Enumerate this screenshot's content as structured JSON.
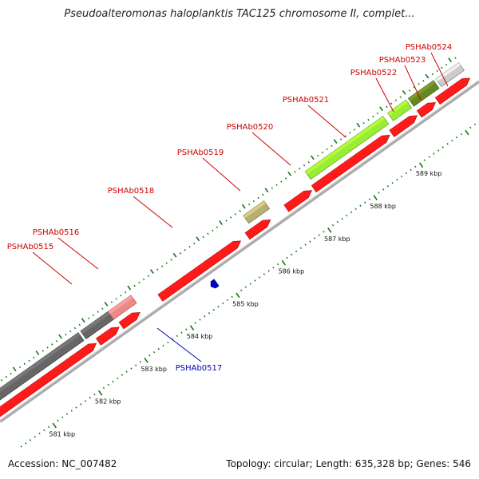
{
  "header": {
    "title": "Pseudoalteromonas haloplanktis TAC125 chromosome II, complet..."
  },
  "footer": {
    "accession": "Accession: NC_007482",
    "summary": "Topology: circular; Length: 635,328 bp; Genes: 546"
  },
  "colors": {
    "forward": "#ff1a1a",
    "reverse": "#ff1a1a",
    "red_label": "#cc0000",
    "blue_label": "#0000bb",
    "backbone": "#aaaaaa",
    "tick": "#117711",
    "grey_feature": "#666666",
    "pink_feature": "#ee8888",
    "olive_feature": "#b7b070",
    "lime_feature": "#99ee33",
    "darkgreen_feature": "#668822",
    "lightgrey_feature": "#cccccc",
    "blue_feature": "#0000cc"
  },
  "map": {
    "units": "kbp",
    "visible_range_kbp": [
      580.5,
      590.4
    ],
    "kbp_labels": [
      {
        "kbp": 581,
        "text": "581 kbp"
      },
      {
        "kbp": 582,
        "text": "582 kbp"
      },
      {
        "kbp": 583,
        "text": "583 kbp"
      },
      {
        "kbp": 584,
        "text": "584 kbp"
      },
      {
        "kbp": 585,
        "text": "585 kbp"
      },
      {
        "kbp": 586,
        "text": "586 kbp"
      },
      {
        "kbp": 587,
        "text": "587 kbp"
      },
      {
        "kbp": 588,
        "text": "588 kbp"
      },
      {
        "kbp": 589,
        "text": "589 kbp"
      }
    ],
    "forward_genes": [
      {
        "start": 580.3,
        "end": 582.45,
        "color": "forward",
        "name": ""
      },
      {
        "start": 582.5,
        "end": 582.95,
        "color": "forward",
        "name": ""
      },
      {
        "start": 583.0,
        "end": 583.4,
        "color": "forward",
        "name": ""
      },
      {
        "start": 583.85,
        "end": 585.6,
        "color": "forward",
        "name": ""
      },
      {
        "start": 585.75,
        "end": 586.25,
        "color": "forward",
        "name": ""
      },
      {
        "start": 586.6,
        "end": 587.15,
        "color": "forward",
        "name": ""
      },
      {
        "start": 587.2,
        "end": 588.85,
        "color": "forward",
        "name": ""
      },
      {
        "start": 588.9,
        "end": 589.45,
        "color": "forward",
        "name": ""
      },
      {
        "start": 589.5,
        "end": 589.85,
        "color": "forward",
        "name": ""
      },
      {
        "start": 589.9,
        "end": 590.6,
        "color": "forward",
        "name": ""
      }
    ],
    "reverse_genes": [
      {
        "start": 584.7,
        "end": 584.82,
        "color": "blue_feature",
        "name": ""
      }
    ],
    "feature_track": [
      {
        "start": 580.3,
        "end": 582.3,
        "color": "grey_feature"
      },
      {
        "start": 582.35,
        "end": 582.95,
        "color": "grey_feature"
      },
      {
        "start": 582.95,
        "end": 583.45,
        "color": "pink_feature"
      },
      {
        "start": 585.9,
        "end": 586.35,
        "color": "olive_feature"
      },
      {
        "start": 587.25,
        "end": 588.95,
        "color": "lime_feature"
      },
      {
        "start": 589.05,
        "end": 589.45,
        "color": "lime_feature"
      },
      {
        "start": 589.5,
        "end": 590.05,
        "color": "darkgreen_feature"
      },
      {
        "start": 590.1,
        "end": 590.6,
        "color": "lightgrey_feature"
      }
    ],
    "gene_labels": [
      {
        "name": "PSHAb0515",
        "text_x": 38,
        "text_y": 312,
        "line_to": [
          90,
          356
        ],
        "color": "red_label",
        "side": "above"
      },
      {
        "name": "PSHAb0516",
        "text_x": 70,
        "text_y": 294,
        "line_to": [
          123,
          337
        ],
        "color": "red_label",
        "side": "above"
      },
      {
        "name": "PSHAb0518",
        "text_x": 164,
        "text_y": 242,
        "line_to": [
          216,
          285
        ],
        "color": "red_label",
        "side": "above"
      },
      {
        "name": "PSHAb0519",
        "text_x": 251,
        "text_y": 194,
        "line_to": [
          301,
          239
        ],
        "color": "red_label",
        "side": "above"
      },
      {
        "name": "PSHAb0520",
        "text_x": 313,
        "text_y": 162,
        "line_to": [
          364,
          207
        ],
        "color": "red_label",
        "side": "above"
      },
      {
        "name": "PSHAb0521",
        "text_x": 383,
        "text_y": 128,
        "line_to": [
          433,
          172
        ],
        "color": "red_label",
        "side": "above"
      },
      {
        "name": "PSHAb0522",
        "text_x": 468,
        "text_y": 94,
        "line_to": [
          493,
          140
        ],
        "color": "red_label",
        "side": "above"
      },
      {
        "name": "PSHAb0523",
        "text_x": 504,
        "text_y": 78,
        "line_to": [
          527,
          125
        ],
        "color": "red_label",
        "side": "above"
      },
      {
        "name": "PSHAb0524",
        "text_x": 537,
        "text_y": 62,
        "line_to": [
          561,
          108
        ],
        "color": "red_label",
        "side": "above"
      },
      {
        "name": "PSHAb0517",
        "text_x": 249,
        "text_y": 464,
        "line_to": [
          197,
          411
        ],
        "color": "blue_label",
        "side": "below"
      }
    ]
  }
}
